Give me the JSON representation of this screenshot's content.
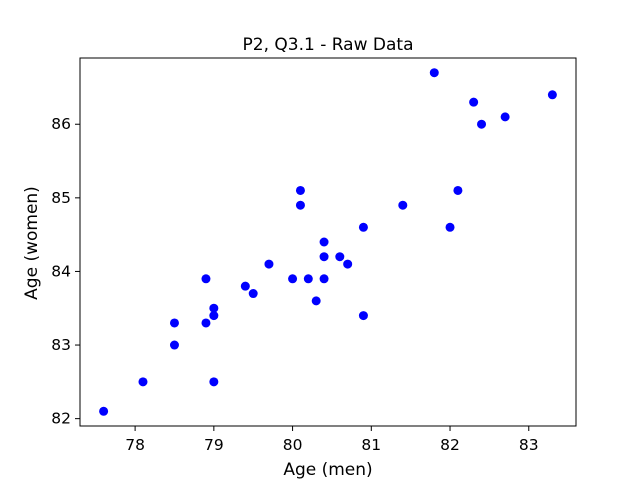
{
  "chart_data": {
    "type": "scatter",
    "title": "P2, Q3.1 - Raw Data",
    "xlabel": "Age (men)",
    "ylabel": "Age (women)",
    "xlim": [
      77.3,
      83.6
    ],
    "ylim": [
      81.9,
      86.9
    ],
    "xticks": [
      78,
      79,
      80,
      81,
      82,
      83
    ],
    "yticks": [
      82,
      83,
      84,
      85,
      86
    ],
    "grid": false,
    "legend": "none",
    "marker_color": "#0000ff",
    "points": [
      {
        "x": 77.6,
        "y": 82.1
      },
      {
        "x": 78.1,
        "y": 82.5
      },
      {
        "x": 78.5,
        "y": 83.0
      },
      {
        "x": 78.5,
        "y": 83.3
      },
      {
        "x": 78.9,
        "y": 83.3
      },
      {
        "x": 78.9,
        "y": 83.9
      },
      {
        "x": 79.0,
        "y": 82.5
      },
      {
        "x": 79.0,
        "y": 83.4
      },
      {
        "x": 79.0,
        "y": 83.5
      },
      {
        "x": 79.4,
        "y": 83.8
      },
      {
        "x": 79.5,
        "y": 83.7
      },
      {
        "x": 79.7,
        "y": 84.1
      },
      {
        "x": 80.0,
        "y": 83.9
      },
      {
        "x": 80.1,
        "y": 84.9
      },
      {
        "x": 80.1,
        "y": 85.1
      },
      {
        "x": 80.2,
        "y": 83.9
      },
      {
        "x": 80.3,
        "y": 83.6
      },
      {
        "x": 80.4,
        "y": 83.9
      },
      {
        "x": 80.4,
        "y": 84.2
      },
      {
        "x": 80.4,
        "y": 84.4
      },
      {
        "x": 80.6,
        "y": 84.2
      },
      {
        "x": 80.7,
        "y": 84.1
      },
      {
        "x": 80.9,
        "y": 83.4
      },
      {
        "x": 80.9,
        "y": 84.6
      },
      {
        "x": 81.4,
        "y": 84.9
      },
      {
        "x": 81.8,
        "y": 86.7
      },
      {
        "x": 82.0,
        "y": 84.6
      },
      {
        "x": 82.1,
        "y": 85.1
      },
      {
        "x": 82.3,
        "y": 86.3
      },
      {
        "x": 82.4,
        "y": 86.0
      },
      {
        "x": 82.7,
        "y": 86.1
      },
      {
        "x": 83.3,
        "y": 86.4
      }
    ]
  }
}
